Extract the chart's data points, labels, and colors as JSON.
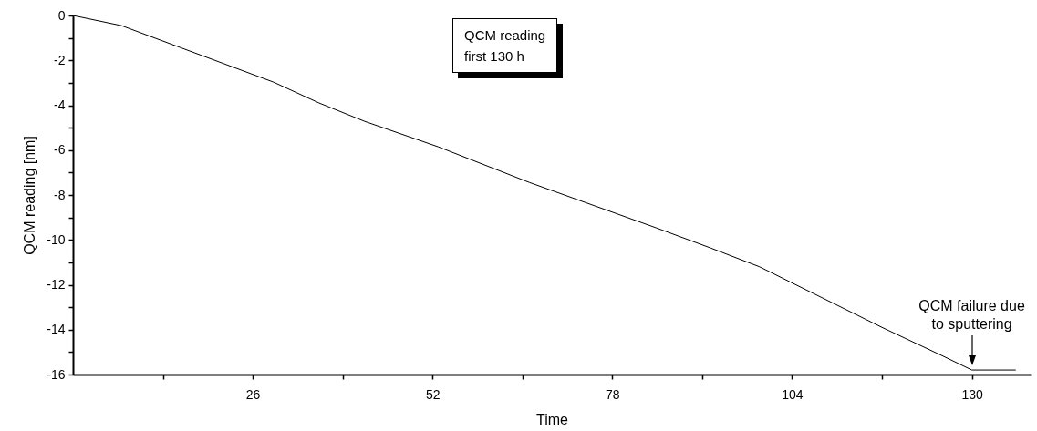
{
  "chart_data": {
    "type": "line",
    "xlabel": "Time",
    "ylabel": "QCM reading [nm]",
    "x": [
      0,
      7,
      15.8,
      29,
      35.6,
      42.2,
      52.8,
      66,
      84.4,
      92.3,
      99.3,
      117,
      125.7,
      130,
      136.3
    ],
    "series": [
      {
        "color": "#000000",
        "values": [
          0,
          -0.45,
          -1.46,
          -2.97,
          -3.9,
          -4.72,
          -5.85,
          -7.44,
          -9.47,
          -10.37,
          -11.2,
          -13.9,
          -15.16,
          -15.8,
          -15.8
        ]
      }
    ],
    "xlim": [
      0,
      138.5
    ],
    "ylim": [
      -16,
      0
    ],
    "xticks": [
      {
        "value": 13,
        "label": null
      },
      26,
      {
        "value": 39,
        "label": null
      },
      52,
      {
        "value": 65,
        "label": null
      },
      78,
      {
        "value": 91,
        "label": null
      },
      104,
      {
        "value": 117,
        "label": null
      },
      130
    ],
    "yticks": [
      -16,
      {
        "value": -15,
        "label": null
      },
      -14,
      {
        "value": -13,
        "label": null
      },
      -12,
      {
        "value": -11,
        "label": null
      },
      -10,
      {
        "value": -9,
        "label": null
      },
      -8,
      {
        "value": -7,
        "label": null
      },
      -6,
      {
        "value": -5,
        "label": null
      },
      -4,
      {
        "value": -3,
        "label": null
      },
      -2,
      {
        "value": -1,
        "label": null
      },
      0
    ],
    "annotations": [
      "QCM reading\nfirst 130 h",
      {
        "text": "QCM failure due\nto sputtering",
        "x": 130,
        "y": -15.8
      }
    ]
  }
}
